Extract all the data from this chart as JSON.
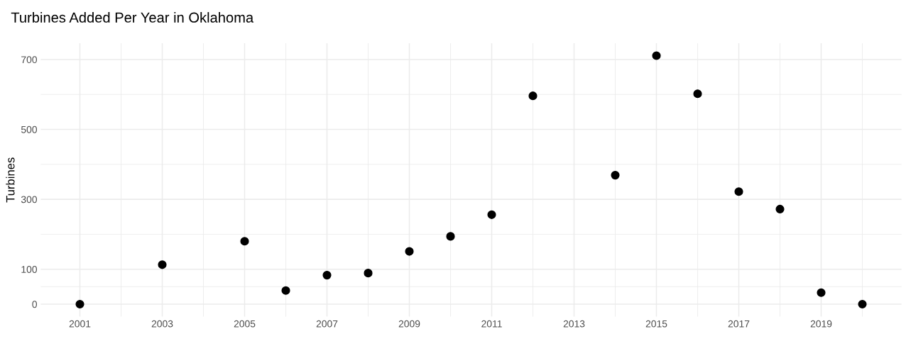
{
  "chart_data": {
    "type": "scatter",
    "title": "Turbines Added Per Year in Oklahoma",
    "ylabel": "Turbines",
    "x": [
      2001,
      2003,
      2005,
      2006,
      2007,
      2008,
      2009,
      2010,
      2011,
      2012,
      2014,
      2015,
      2016,
      2017,
      2018,
      2019,
      2020
    ],
    "series": [
      {
        "color": "#000000",
        "values": [
          0,
          113,
          180,
          39,
          83,
          89,
          151,
          194,
          256,
          596,
          369,
          711,
          602,
          322,
          272,
          33,
          0
        ]
      }
    ],
    "xlim": [
      2000.05,
      2020.95
    ],
    "ylim": [
      -35.5,
      746.5
    ],
    "xticks": [
      2001,
      {
        "value": 2002,
        "label": null
      },
      2003,
      {
        "value": 2004,
        "label": null
      },
      2005,
      {
        "value": 2006,
        "label": null
      },
      2007,
      {
        "value": 2008,
        "label": null
      },
      2009,
      {
        "value": 2010,
        "label": null
      },
      2011,
      {
        "value": 2012,
        "label": null
      },
      2013,
      {
        "value": 2014,
        "label": null
      },
      2015,
      {
        "value": 2016,
        "label": null
      },
      2017,
      {
        "value": 2018,
        "label": null
      },
      2019,
      {
        "value": 2020,
        "label": null
      }
    ],
    "yticks": [
      0,
      {
        "value": 50,
        "label": null
      },
      100,
      {
        "value": 200,
        "label": null
      },
      300,
      {
        "value": 400,
        "label": null
      },
      500,
      {
        "value": 600,
        "label": null
      },
      700
    ],
    "grid": true,
    "marker": "circle"
  }
}
